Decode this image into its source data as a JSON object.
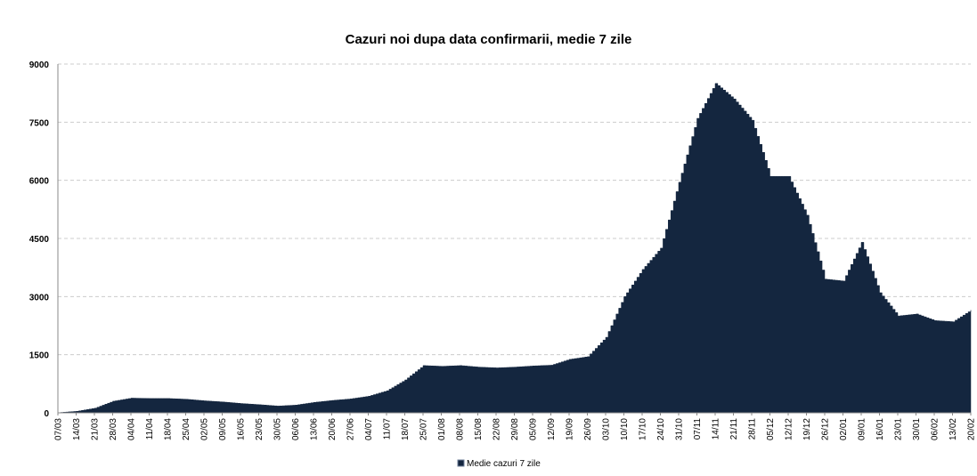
{
  "chart_data": {
    "type": "area",
    "title": "Cazuri noi dupa data confirmarii, medie 7 zile",
    "xlabel": "",
    "ylabel": "",
    "ylim": [
      0,
      9000
    ],
    "yticks": [
      0,
      1500,
      3000,
      4500,
      6000,
      7500,
      9000
    ],
    "grid": true,
    "legend_position": "bottom",
    "colors": {
      "fill": "#14263F",
      "grid": "#cccccc"
    },
    "categories": [
      "07/03",
      "14/03",
      "21/03",
      "28/03",
      "04/04",
      "11/04",
      "18/04",
      "25/04",
      "02/05",
      "09/05",
      "16/05",
      "23/05",
      "30/05",
      "06/06",
      "13/06",
      "20/06",
      "27/06",
      "04/07",
      "11/07",
      "18/07",
      "25/07",
      "01/08",
      "08/08",
      "15/08",
      "22/08",
      "29/08",
      "05/09",
      "12/09",
      "19/09",
      "26/09",
      "03/10",
      "10/10",
      "17/10",
      "24/10",
      "31/10",
      "07/11",
      "14/11",
      "21/11",
      "28/11",
      "05/12",
      "12/12",
      "19/12",
      "26/12",
      "02/01",
      "09/01",
      "16/01",
      "23/01",
      "30/01",
      "06/02",
      "13/02",
      "20/02"
    ],
    "series": [
      {
        "name": "Medie cazuri 7 zile",
        "values": [
          5,
          40,
          120,
          300,
          380,
          370,
          370,
          350,
          310,
          280,
          240,
          210,
          175,
          200,
          270,
          320,
          360,
          430,
          570,
          850,
          1220,
          1200,
          1220,
          1180,
          1160,
          1180,
          1210,
          1230,
          1380,
          1450,
          1950,
          3000,
          3700,
          4250,
          5950,
          7600,
          8500,
          8100,
          7550,
          6100,
          6100,
          5100,
          3450,
          3400,
          4400,
          3100,
          2500,
          2550,
          2380,
          2350,
          2650
        ]
      }
    ]
  }
}
